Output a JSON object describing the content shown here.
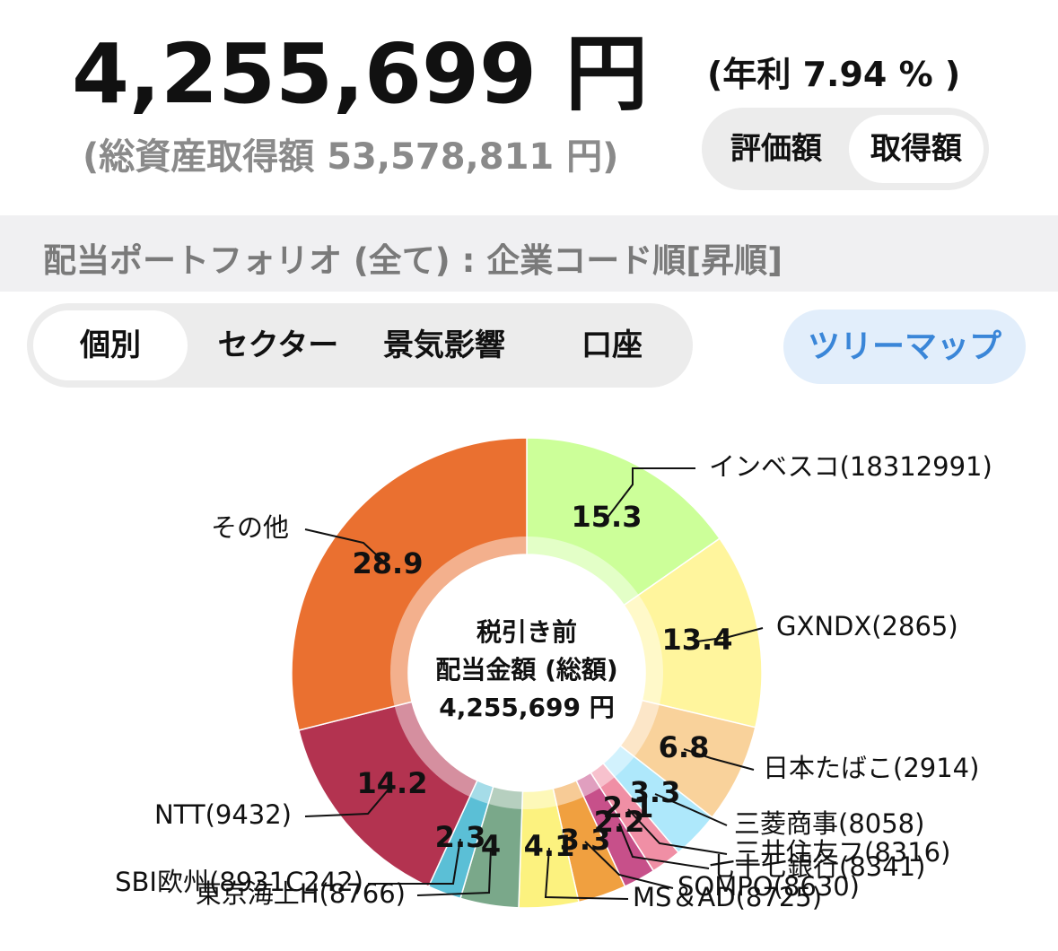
{
  "header": {
    "total_value": "4,255,699 円",
    "annual_rate": "(年利 7.94 % )",
    "cost_basis": "(総資産取得額 53,578,811 円)"
  },
  "toggle": [
    "評価額",
    "取得額"
  ],
  "section_title": "配当ポートフォリオ (全て) : 企業コード順[昇順]",
  "tabs": [
    "個別",
    "セクター",
    "景気影響",
    "口座"
  ],
  "treemap_button": "ツリーマップ",
  "chart_data": {
    "type": "pie",
    "center_text": [
      "税引き前",
      "配当金額 (総額)",
      "4,255,699 円"
    ],
    "categories": [
      "インベスコ(18312991)",
      "GXNDX(2865)",
      "日本たばこ(2914)",
      "三菱商事(8058)",
      "三井住友フ(8316)",
      "七十七銀行(8341)",
      "SOMPO(8630)",
      "MS＆AD(8725)",
      "東京海上H(8766)",
      "SBI欧州(8931C242)",
      "NTT(9432)",
      "その他"
    ],
    "values": [
      15.3,
      13.4,
      6.8,
      3.3,
      2.1,
      2.2,
      3.3,
      4.1,
      4.0,
      2.3,
      14.2,
      28.9
    ],
    "colors": [
      "#ccff99",
      "#fff59d",
      "#f9d29b",
      "#aee8fb",
      "#f08fa5",
      "#c7508a",
      "#f0a040",
      "#fcf27f",
      "#7aa88a",
      "#5bbfd6",
      "#b33350",
      "#ea7030"
    ]
  }
}
